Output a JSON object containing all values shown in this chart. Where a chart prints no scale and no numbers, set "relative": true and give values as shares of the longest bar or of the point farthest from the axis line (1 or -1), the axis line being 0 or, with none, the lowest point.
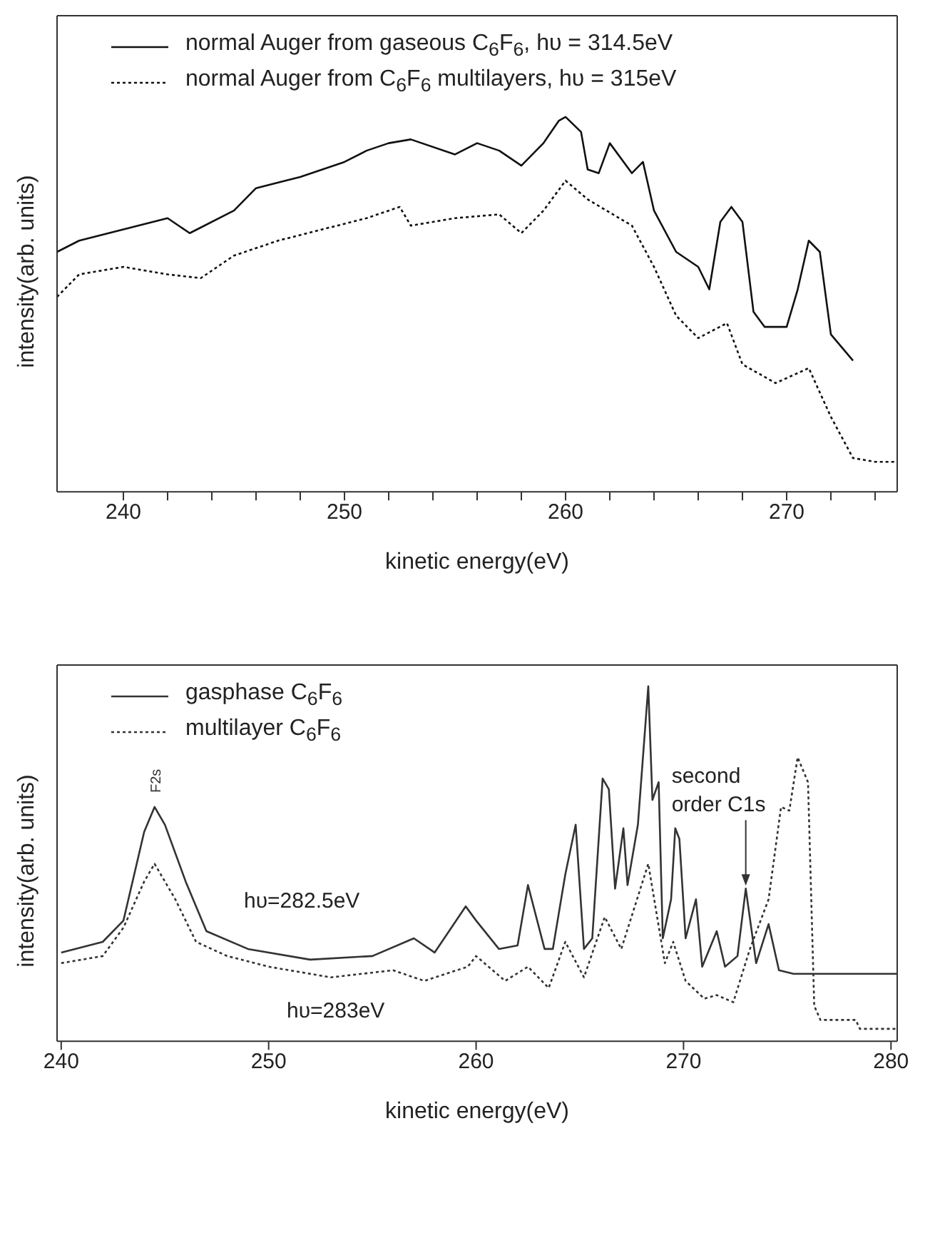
{
  "chart_data": [
    {
      "type": "line",
      "relative": true,
      "xlabel": "kinetic energy(eV)",
      "ylabel": "intensity(arb. units)",
      "legend": "top left",
      "xlim": [
        237,
        275
      ],
      "xticks": [
        240,
        {
          "value": 242,
          "label": null
        },
        {
          "value": 244,
          "label": null
        },
        {
          "value": 246,
          "label": null
        },
        {
          "value": 248,
          "label": null
        },
        250,
        {
          "value": 252,
          "label": null
        },
        {
          "value": 254,
          "label": null
        },
        {
          "value": 256,
          "label": null
        },
        {
          "value": 258,
          "label": null
        },
        260,
        {
          "value": 262,
          "label": null
        },
        {
          "value": 264,
          "label": null
        },
        {
          "value": 266,
          "label": null
        },
        {
          "value": 268,
          "label": null
        },
        270,
        {
          "value": 272,
          "label": null
        },
        {
          "value": 274,
          "label": null
        }
      ],
      "series": [
        {
          "name": "normal Auger from gaseous C$_{6}$F$_{6}$, hυ = 314.5eV",
          "color": "#111111",
          "line_style": "solid",
          "x": [
            237,
            238,
            240,
            242,
            243,
            245,
            246,
            248,
            250,
            251,
            252,
            253,
            255,
            256,
            257,
            258,
            259,
            259.7,
            260,
            260.7,
            261,
            261.5,
            262,
            263,
            263.5,
            264,
            265,
            266,
            266.5,
            267,
            267.5,
            268,
            268.5,
            269,
            270,
            270.5,
            271,
            271.5,
            272,
            273
          ],
          "values": [
            0.64,
            0.67,
            0.7,
            0.73,
            0.69,
            0.75,
            0.81,
            0.84,
            0.88,
            0.91,
            0.93,
            0.94,
            0.9,
            0.93,
            0.91,
            0.87,
            0.93,
            0.99,
            1.0,
            0.96,
            0.86,
            0.85,
            0.93,
            0.85,
            0.88,
            0.75,
            0.64,
            0.6,
            0.54,
            0.72,
            0.76,
            0.72,
            0.48,
            0.44,
            0.44,
            0.54,
            0.67,
            0.64,
            0.42,
            0.35
          ]
        },
        {
          "name": "normal Auger from C$_{6}$F$_{6}$ multilayers, hυ = 315eV",
          "color": "#111111",
          "line_style": "dotted",
          "x": [
            237,
            238,
            240,
            242,
            243.5,
            245,
            247,
            249,
            251,
            252.5,
            253,
            255,
            257,
            258,
            259,
            260,
            261,
            263,
            264,
            265,
            266,
            267.3,
            268,
            269.5,
            271,
            272,
            273,
            274,
            275
          ],
          "values": [
            0.52,
            0.58,
            0.6,
            0.58,
            0.57,
            0.63,
            0.67,
            0.7,
            0.73,
            0.76,
            0.71,
            0.73,
            0.74,
            0.69,
            0.75,
            0.83,
            0.78,
            0.71,
            0.6,
            0.47,
            0.41,
            0.45,
            0.34,
            0.29,
            0.33,
            0.2,
            0.09,
            0.08,
            0.08
          ]
        }
      ]
    },
    {
      "type": "line",
      "relative": true,
      "xlabel": "kinetic energy(eV)",
      "ylabel": "intensity(arb. units)",
      "legend": "top left",
      "xlim": [
        239.8,
        280.3
      ],
      "xticks": [
        240,
        250,
        260,
        270,
        280
      ],
      "annotations": [
        {
          "text": "F2s",
          "x": 244.5,
          "y": 0.66
        },
        "hυ=282.5eV",
        "hυ=283eV",
        {
          "text": "second order C1s",
          "x": 273,
          "y": 0.43
        }
      ],
      "series": [
        {
          "name": "gasphase C$_{6}$F$_{6}$",
          "color": "#333333",
          "line_style": "solid",
          "x": [
            240,
            242,
            243,
            244,
            244.5,
            245,
            246,
            247,
            249,
            252,
            255,
            257,
            258,
            259.5,
            260,
            261.1,
            262,
            262.5,
            263.3,
            263.7,
            264.3,
            264.8,
            265.2,
            265.6,
            266.1,
            266.4,
            266.7,
            267.1,
            267.3,
            267.8,
            268.3,
            268.5,
            268.8,
            269,
            269.4,
            269.6,
            269.8,
            270.1,
            270.6,
            270.9,
            271.6,
            272,
            272.6,
            273,
            273.5,
            274.1,
            274.6,
            275.3,
            280.3
          ],
          "values": [
            0.25,
            0.28,
            0.34,
            0.59,
            0.66,
            0.61,
            0.45,
            0.31,
            0.26,
            0.23,
            0.24,
            0.29,
            0.25,
            0.38,
            0.34,
            0.26,
            0.27,
            0.44,
            0.26,
            0.26,
            0.47,
            0.61,
            0.26,
            0.29,
            0.74,
            0.71,
            0.43,
            0.6,
            0.44,
            0.61,
            1.0,
            0.68,
            0.73,
            0.29,
            0.4,
            0.6,
            0.57,
            0.29,
            0.4,
            0.21,
            0.31,
            0.21,
            0.24,
            0.43,
            0.22,
            0.33,
            0.2,
            0.19,
            0.19
          ]
        },
        {
          "name": "multilayer C$_{6}$F$_{6}$",
          "color": "#333333",
          "line_style": "dotted",
          "x": [
            240,
            242,
            243,
            244,
            244.5,
            245.5,
            246.5,
            248,
            250,
            253,
            256,
            257.5,
            259.6,
            260,
            261.4,
            262.5,
            263.5,
            264.3,
            265.2,
            266.2,
            267,
            268.3,
            269.1,
            269.5,
            270.1,
            271,
            271.6,
            272.4,
            273.2,
            274.1,
            274.7,
            275.1,
            275.5,
            276,
            276.3,
            276.6,
            278.3,
            278.5,
            280.3
          ],
          "values": [
            0.22,
            0.24,
            0.32,
            0.45,
            0.5,
            0.4,
            0.28,
            0.24,
            0.21,
            0.18,
            0.2,
            0.17,
            0.21,
            0.24,
            0.17,
            0.21,
            0.15,
            0.28,
            0.18,
            0.35,
            0.26,
            0.5,
            0.22,
            0.28,
            0.17,
            0.12,
            0.13,
            0.11,
            0.26,
            0.4,
            0.66,
            0.65,
            0.8,
            0.73,
            0.1,
            0.06,
            0.06,
            0.035,
            0.035
          ]
        }
      ]
    }
  ]
}
